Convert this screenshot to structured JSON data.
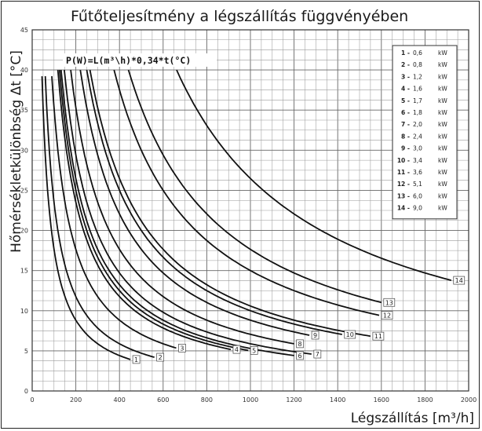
{
  "chart_data": {
    "type": "line",
    "title": "Fűtőteljesítmény a légszállítás függvényében",
    "xlabel": "Légszállítás [m³/h]",
    "ylabel": "Hőmérsékletkülönbség  Δt [°C]",
    "formula": "P(W)=L(m³\\h)*0,34*t(°C)",
    "xlim": [
      0,
      2000
    ],
    "ylim": [
      0,
      45
    ],
    "xticks": [
      0,
      200,
      400,
      600,
      800,
      1000,
      1200,
      1400,
      1600,
      1800,
      2000
    ],
    "yticks": [
      0,
      5,
      10,
      15,
      20,
      25,
      30,
      35,
      40,
      45
    ],
    "grid": true,
    "legend_position": "top-right",
    "legend": [
      {
        "num": "1",
        "value": "0,6",
        "unit": "kW"
      },
      {
        "num": "2",
        "value": "0,8",
        "unit": "kW"
      },
      {
        "num": "3",
        "value": "1,2",
        "unit": "kW"
      },
      {
        "num": "4",
        "value": "1,6",
        "unit": "kW"
      },
      {
        "num": "5",
        "value": "1,7",
        "unit": "kW"
      },
      {
        "num": "6",
        "value": "1,8",
        "unit": "kW"
      },
      {
        "num": "7",
        "value": "2,0",
        "unit": "kW"
      },
      {
        "num": "8",
        "value": "2,4",
        "unit": "kW"
      },
      {
        "num": "9",
        "value": "3,0",
        "unit": "kW"
      },
      {
        "num": "10",
        "value": "3,4",
        "unit": "kW"
      },
      {
        "num": "11",
        "value": "3,6",
        "unit": "kW"
      },
      {
        "num": "12",
        "value": "5,1",
        "unit": "kW"
      },
      {
        "num": "13",
        "value": "6,0",
        "unit": "kW"
      },
      {
        "num": "14",
        "value": "9,0",
        "unit": "kW"
      }
    ],
    "series": [
      {
        "name": "1",
        "power_kw": 0.6,
        "x_start": 45,
        "x_end": 450
      },
      {
        "name": "2",
        "power_kw": 0.8,
        "x_start": 60,
        "x_end": 560
      },
      {
        "name": "3",
        "power_kw": 1.2,
        "x_start": 90,
        "x_end": 660
      },
      {
        "name": "4",
        "power_kw": 1.6,
        "x_start": 110,
        "x_end": 910
      },
      {
        "name": "5",
        "power_kw": 1.7,
        "x_start": 120,
        "x_end": 990
      },
      {
        "name": "6",
        "power_kw": 1.8,
        "x_start": 125,
        "x_end": 1200
      },
      {
        "name": "7",
        "power_kw": 2.0,
        "x_start": 140,
        "x_end": 1280
      },
      {
        "name": "8",
        "power_kw": 2.4,
        "x_start": 170,
        "x_end": 1200
      },
      {
        "name": "9",
        "power_kw": 3.0,
        "x_start": 210,
        "x_end": 1270
      },
      {
        "name": "10",
        "power_kw": 3.4,
        "x_start": 240,
        "x_end": 1420
      },
      {
        "name": "11",
        "power_kw": 3.6,
        "x_start": 260,
        "x_end": 1550
      },
      {
        "name": "12",
        "power_kw": 5.1,
        "x_start": 360,
        "x_end": 1590
      },
      {
        "name": "13",
        "power_kw": 6.0,
        "x_start": 430,
        "x_end": 1600
      },
      {
        "name": "14",
        "power_kw": 9.0,
        "x_start": 660,
        "x_end": 1920
      }
    ]
  }
}
